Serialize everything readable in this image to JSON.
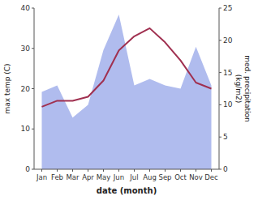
{
  "chart_data": {
    "type": "line",
    "categories": [
      "Jan",
      "Feb",
      "Mar",
      "Apr",
      "May",
      "Jun",
      "Jul",
      "Aug",
      "Sep",
      "Oct",
      "Nov",
      "Dec"
    ],
    "x_label": "date (month)",
    "y_label": "max temp (C)",
    "y2_label": "med. precipitation\n(kg/m2)",
    "series": [
      {
        "type": "area",
        "axis": "y2",
        "color": "#b0bcee",
        "values": [
          12.0,
          13.0,
          8.0,
          10.0,
          18.5,
          24.0,
          13.0,
          14.0,
          13.0,
          12.5,
          19.0,
          13.0
        ]
      },
      {
        "type": "line",
        "color": "#a03050",
        "values": [
          15.5,
          17.0,
          17.0,
          18.0,
          22.0,
          29.5,
          33.0,
          35.0,
          31.5,
          27.0,
          21.5,
          20.0
        ]
      }
    ],
    "ylim": [
      0,
      40
    ],
    "yticks": [
      0,
      10,
      20,
      30,
      40
    ],
    "y2lim": [
      0,
      25
    ],
    "y2ticks": [
      0,
      5,
      10,
      15,
      20,
      25
    ],
    "grid": false
  }
}
